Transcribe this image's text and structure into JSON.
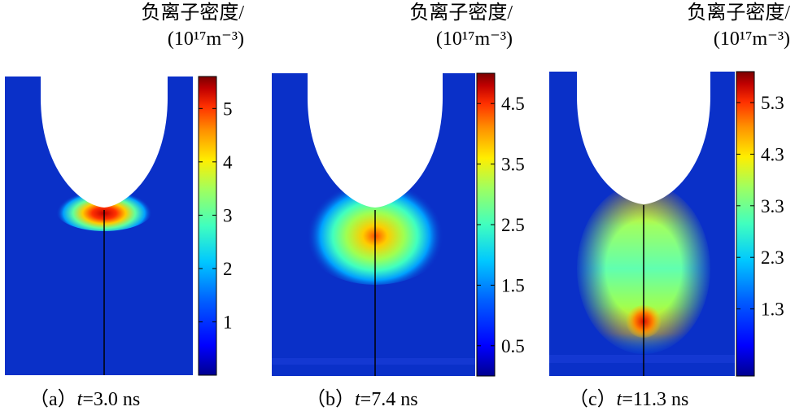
{
  "colorbar_stops": [
    "#00008f",
    "#0000ff",
    "#0060ff",
    "#00c8ff",
    "#40ffbf",
    "#9fff60",
    "#ffee00",
    "#ff9000",
    "#ff3000",
    "#c00000",
    "#7a0000"
  ],
  "background_color": "#0a30c8",
  "chart_data": [
    {
      "type": "heatmap",
      "title": "负离子密度/",
      "unit": "(10¹⁷m⁻³)",
      "caption_prefix": "（a）",
      "caption_var": "t",
      "caption_value": "=3.0 ns",
      "colorbar_range": [
        0,
        5.6
      ],
      "colorbar_ticks": [
        1,
        2,
        3,
        4,
        5
      ],
      "colorbar_tick_labels": [
        "1",
        "2",
        "3",
        "4",
        "5"
      ]
    },
    {
      "type": "heatmap",
      "title": "负离子密度/",
      "unit": "(10¹⁷m⁻³)",
      "caption_prefix": "（b）",
      "caption_var": "t",
      "caption_value": "=7.4 ns",
      "colorbar_range": [
        0,
        5.0
      ],
      "colorbar_ticks": [
        0.5,
        1.5,
        2.5,
        3.5,
        4.5
      ],
      "colorbar_tick_labels": [
        "0.5",
        "1.5",
        "2.5",
        "3.5",
        "4.5"
      ]
    },
    {
      "type": "heatmap",
      "title": "负离子密度/",
      "unit": "(10¹⁷m⁻³)",
      "caption_prefix": "（c）",
      "caption_var": "t",
      "caption_value": "=11.3 ns",
      "colorbar_range": [
        0,
        5.9
      ],
      "colorbar_ticks": [
        1.3,
        2.3,
        3.3,
        4.3,
        5.3
      ],
      "colorbar_tick_labels": [
        "1.3",
        "2.3",
        "3.3",
        "4.3",
        "5.3"
      ]
    }
  ]
}
